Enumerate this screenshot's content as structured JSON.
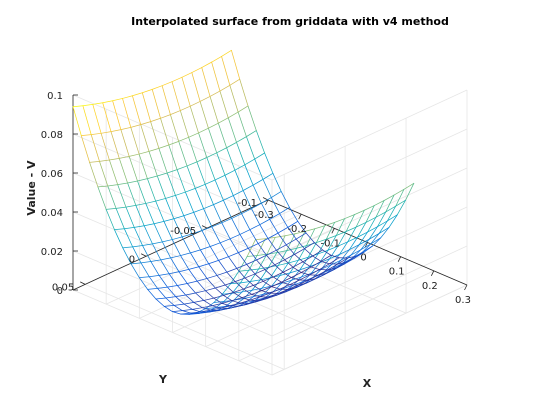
{
  "chart_data": {
    "type": "surface",
    "title": "Interpolated surface from griddata with v4 method",
    "xlabel": "X",
    "ylabel": "Y",
    "zlabel": "Value - V",
    "x_ticks": [
      "-0.3",
      "-0.2",
      "-0.1",
      "0",
      "0.1",
      "0.2",
      "0.3"
    ],
    "y_ticks": [
      "-0.1",
      "-0.05",
      "0",
      "0.05"
    ],
    "z_ticks": [
      "0",
      "0.02",
      "0.04",
      "0.06",
      "0.08",
      "0.1"
    ],
    "xlim": [
      -0.3,
      0.3
    ],
    "ylim": [
      -0.1,
      0.06
    ],
    "zlim": [
      0,
      0.1
    ],
    "x_range": [
      -0.3,
      0.25
    ],
    "y_range": [
      -0.07,
      0.06
    ],
    "grid": true,
    "colormap": "parula",
    "colors": [
      "#352a87",
      "#0f5cdd",
      "#1481d6",
      "#06a4ca",
      "#2eb7a4",
      "#87bf77",
      "#d1bb59",
      "#fec832",
      "#f9fb0e"
    ],
    "surface_model": {
      "center_x": 0.0,
      "center_y": -0.03,
      "x_coeff": 1.0,
      "y_coeff": 1.5,
      "near_edge_value": 0.093,
      "far_corner_value": 0.09
    }
  }
}
